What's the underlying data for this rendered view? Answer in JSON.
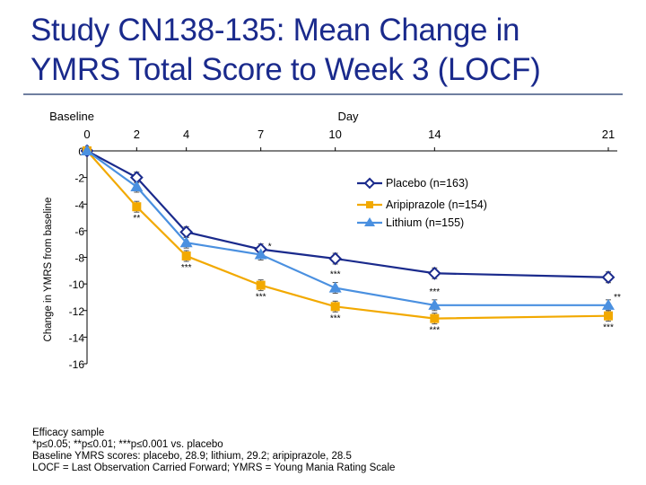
{
  "title_lines": [
    "Study CN138-135: Mean Change in",
    "YMRS Total Score to Week 3 (LOCF)"
  ],
  "footnotes": [
    "Efficacy sample",
    "*p≤0.05; **p≤0.01; ***p≤0.001 vs. placebo",
    "Baseline YMRS scores: placebo, 28.9; lithium, 29.2; aripiprazole, 28.5",
    "LOCF = Last Observation Carried Forward; YMRS = Young Mania Rating Scale"
  ],
  "colors": {
    "placebo": "#1a2a8c",
    "aripiprazole": "#f2a900",
    "lithium": "#4a90e0",
    "title": "#1a2a8c"
  },
  "chart_data": {
    "type": "line",
    "title": "",
    "xlabel": "Day",
    "xlabel_left": "Baseline",
    "ylabel": "Change in YMRS from baseline",
    "x": [
      0,
      2,
      4,
      7,
      10,
      14,
      21
    ],
    "xticklabels": [
      "0",
      "2",
      "4",
      "7",
      "10",
      "14",
      "21"
    ],
    "ylim": [
      -16,
      0
    ],
    "yticks": [
      0,
      -2,
      -4,
      -6,
      -8,
      -10,
      -12,
      -14,
      -16
    ],
    "ytick_labels": [
      "0",
      "-2",
      "-4",
      "-6",
      "-8",
      "-10",
      "-12",
      "-14",
      "-16"
    ],
    "legend_position": "top-right",
    "series": [
      {
        "name": "Placebo (n=163)",
        "marker": "diamond",
        "values": [
          0,
          -2.0,
          -6.1,
          -7.4,
          -8.1,
          -9.2,
          -9.5
        ],
        "sig": [
          "",
          "",
          "",
          "",
          "",
          "",
          ""
        ]
      },
      {
        "name": "Aripiprazole (n=154)",
        "marker": "square",
        "values": [
          0,
          -4.2,
          -7.9,
          -10.1,
          -11.7,
          -12.6,
          -12.4
        ],
        "sig": [
          "",
          "**",
          "***",
          "***",
          "***",
          "***",
          "***"
        ]
      },
      {
        "name": "Lithium (n=155)",
        "marker": "triangle",
        "values": [
          0,
          -2.7,
          -6.9,
          -7.8,
          -10.3,
          -11.6,
          -11.6
        ],
        "sig": [
          "",
          "",
          "",
          "*",
          "***",
          "***",
          "**"
        ]
      }
    ]
  }
}
